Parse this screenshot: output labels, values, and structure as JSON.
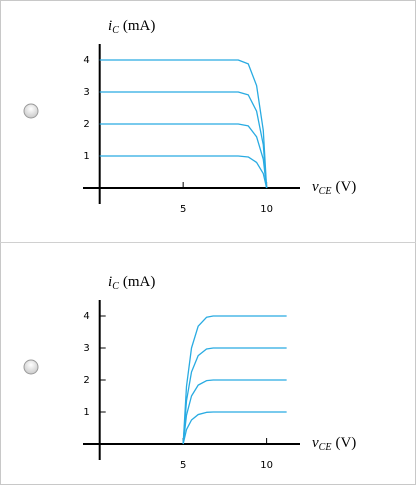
{
  "chart_data": [
    {
      "type": "line",
      "y_label": {
        "symbol": "i",
        "subscript": "C",
        "unit": "(mA)"
      },
      "x_label": {
        "symbol": "v",
        "subscript": "CE",
        "unit": "(V)"
      },
      "xlim": [
        -1,
        12
      ],
      "ylim": [
        -0.5,
        4.5
      ],
      "xticks": [
        5,
        10
      ],
      "yticks": [
        1,
        2,
        3,
        4
      ],
      "series": [
        {
          "color": "#29abe2",
          "x": [
            0,
            8.3,
            8.9,
            9.4,
            9.8,
            10
          ],
          "values": [
            1,
            1,
            0.97,
            0.8,
            0.45,
            0
          ]
        },
        {
          "color": "#29abe2",
          "x": [
            0,
            8.3,
            8.9,
            9.4,
            9.8,
            10
          ],
          "values": [
            2,
            2,
            1.94,
            1.6,
            0.9,
            0
          ]
        },
        {
          "color": "#29abe2",
          "x": [
            0,
            8.3,
            8.9,
            9.4,
            9.8,
            10
          ],
          "values": [
            3,
            3,
            2.91,
            2.4,
            1.35,
            0
          ]
        },
        {
          "color": "#29abe2",
          "x": [
            0,
            8.3,
            8.9,
            9.4,
            9.8,
            10
          ],
          "values": [
            4,
            4,
            3.88,
            3.2,
            1.8,
            0
          ]
        }
      ]
    },
    {
      "type": "line",
      "y_label": {
        "symbol": "i",
        "subscript": "C",
        "unit": "(mA)"
      },
      "x_label": {
        "symbol": "v",
        "subscript": "CE",
        "unit": "(V)"
      },
      "xlim": [
        -1,
        12
      ],
      "ylim": [
        -0.5,
        4.5
      ],
      "xticks": [
        5,
        10
      ],
      "yticks": [
        1,
        2,
        3,
        4
      ],
      "series": [
        {
          "color": "#29abe2",
          "x": [
            5,
            5.2,
            5.5,
            5.9,
            6.4,
            6.8,
            11.2
          ],
          "values": [
            0,
            0.45,
            0.75,
            0.92,
            0.99,
            1,
            1
          ]
        },
        {
          "color": "#29abe2",
          "x": [
            5,
            5.2,
            5.5,
            5.9,
            6.4,
            6.8,
            11.2
          ],
          "values": [
            0,
            0.9,
            1.5,
            1.84,
            1.98,
            2,
            2
          ]
        },
        {
          "color": "#29abe2",
          "x": [
            5,
            5.2,
            5.5,
            5.9,
            6.4,
            6.8,
            11.2
          ],
          "values": [
            0,
            1.35,
            2.25,
            2.76,
            2.97,
            3,
            3
          ]
        },
        {
          "color": "#29abe2",
          "x": [
            5,
            5.2,
            5.5,
            5.9,
            6.4,
            6.8,
            11.2
          ],
          "values": [
            0,
            1.8,
            3.0,
            3.68,
            3.96,
            4,
            4
          ]
        }
      ]
    }
  ]
}
